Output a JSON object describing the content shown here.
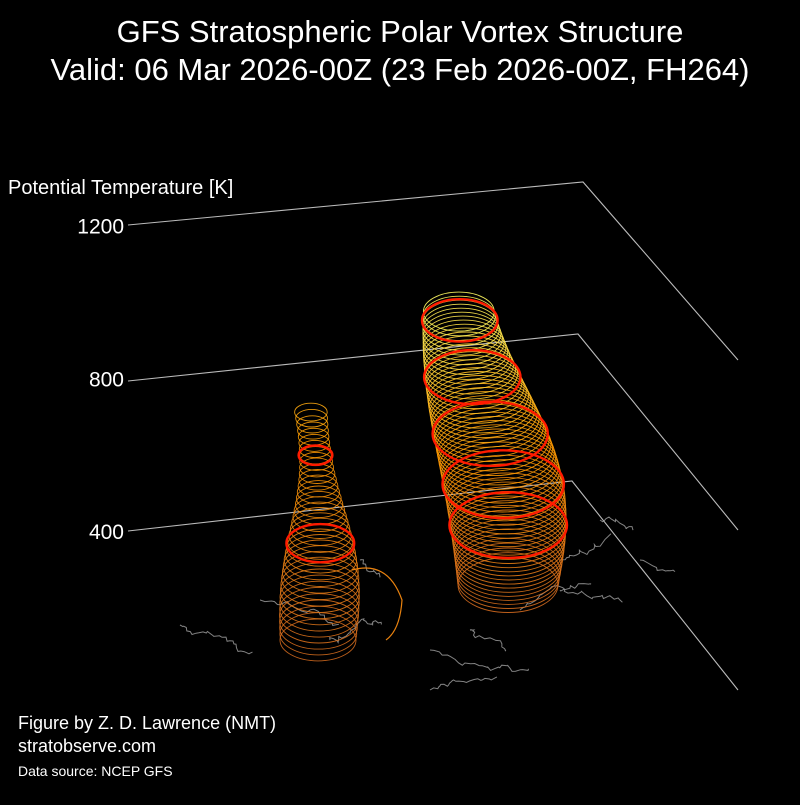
{
  "title": "GFS Stratospheric Polar Vortex Structure",
  "subtitle": "Valid: 06 Mar 2026-00Z  (23 Feb 2026-00Z, FH264)",
  "credits": {
    "author": "Figure by Z. D. Lawrence (NMT)",
    "website": "stratobserve.com",
    "source": "Data source: NCEP GFS"
  },
  "chart_data": {
    "type": "3d-surface",
    "zlabel": "Potential Temperature [K]",
    "z_ticks": [
      400,
      800,
      1200
    ],
    "zlim": [
      0,
      1300
    ],
    "grid": true,
    "colors": {
      "background": "#000000",
      "axes": "#bbbbbb",
      "coastlines": "#9a9a9a",
      "highlight_contour": "#ff1a00",
      "color_low": "#d2691e",
      "color_mid": "#ff9b00",
      "color_high": "#ffff66"
    },
    "vortices": [
      {
        "name": "",
        "z_range": [
          200,
          720
        ],
        "highlight_levels": [
          420,
          620
        ]
      },
      {
        "name": "",
        "z_range": [
          200,
          1080
        ],
        "highlight_levels": [
          390,
          520,
          680,
          860,
          1040
        ]
      }
    ]
  }
}
